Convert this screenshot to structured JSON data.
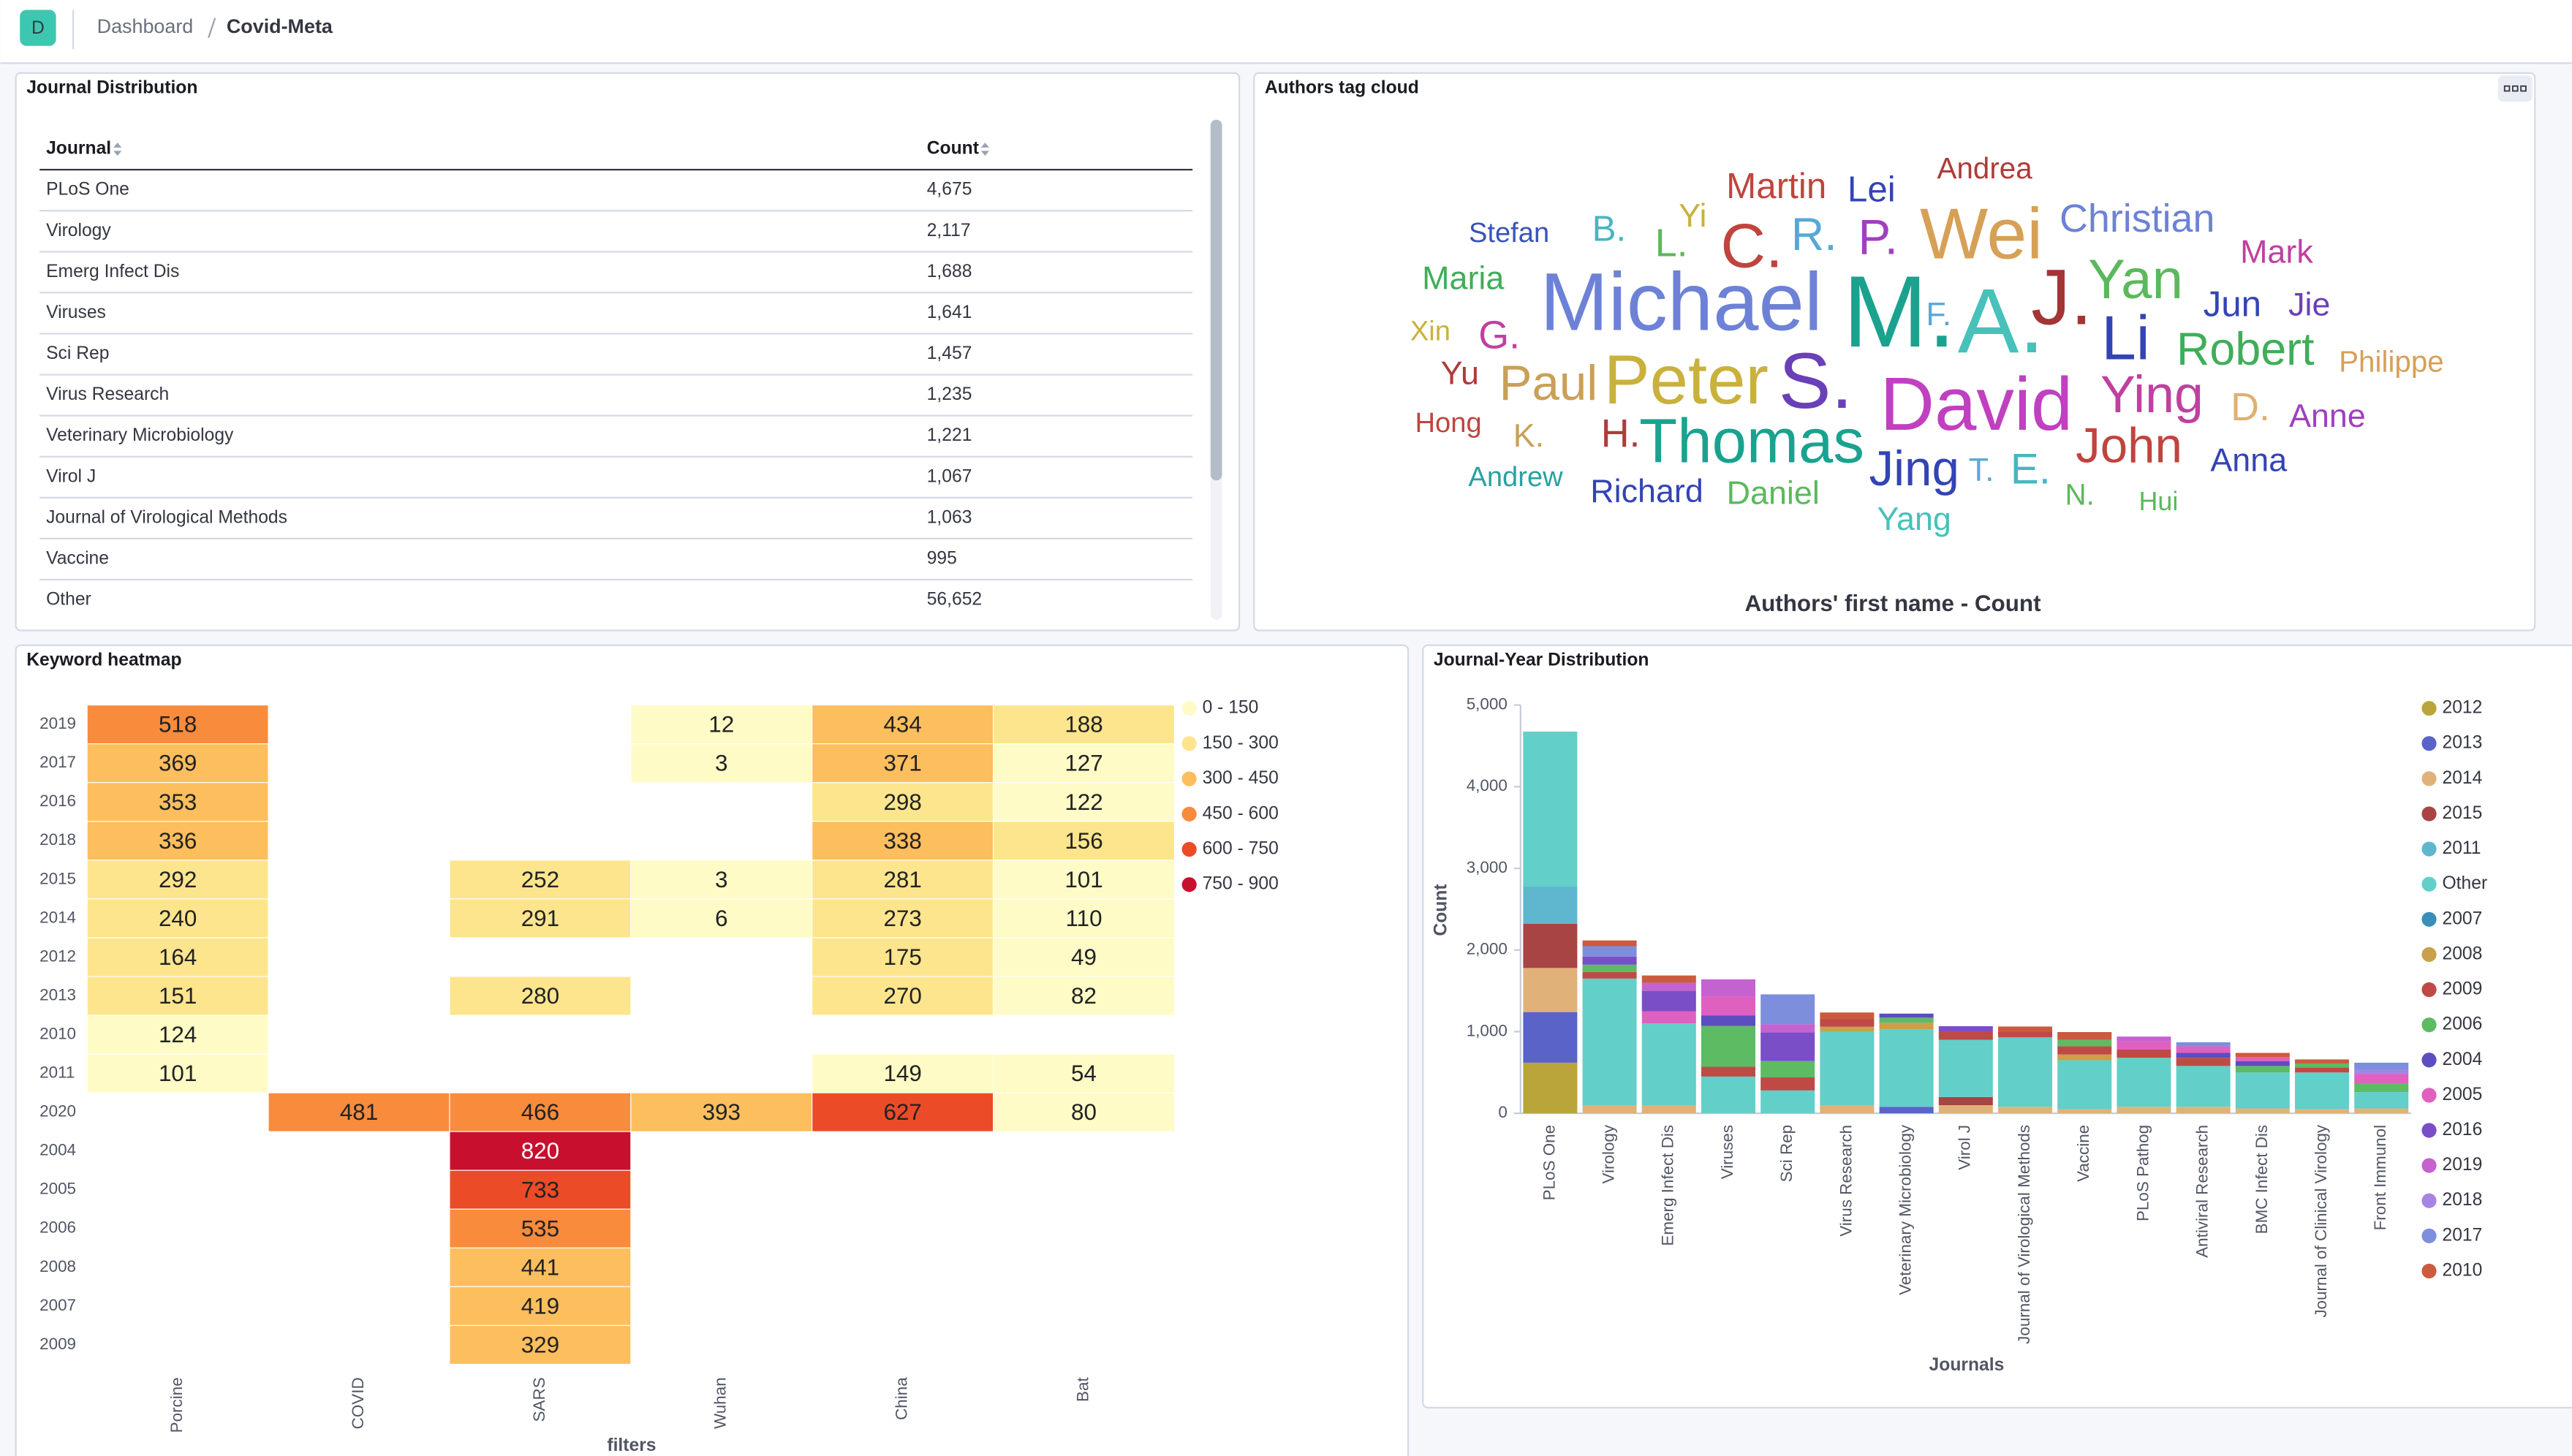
{
  "header": {
    "avatar": "D",
    "breadcrumbs": [
      "Dashboard",
      "Covid-Meta"
    ]
  },
  "journal_table": {
    "title": "Journal Distribution",
    "columns": [
      "Journal",
      "Count"
    ],
    "rows": [
      [
        "PLoS One",
        "4,675"
      ],
      [
        "Virology",
        "2,117"
      ],
      [
        "Emerg Infect Dis",
        "1,688"
      ],
      [
        "Viruses",
        "1,641"
      ],
      [
        "Sci Rep",
        "1,457"
      ],
      [
        "Virus Research",
        "1,235"
      ],
      [
        "Veterinary Microbiology",
        "1,221"
      ],
      [
        "Virol J",
        "1,067"
      ],
      [
        "Journal of Virological Methods",
        "1,063"
      ],
      [
        "Vaccine",
        "995"
      ],
      [
        "Other",
        "56,652"
      ]
    ]
  },
  "chart_data": [
    {
      "type": "tagcloud",
      "title": "Authors tag cloud",
      "caption": "Authors' first name - Count",
      "words": [
        {
          "text": "Andrea",
          "color": "#b03a3a"
        },
        {
          "text": "Martin",
          "color": "#c0443e"
        },
        {
          "text": "Lei",
          "color": "#3344b5"
        },
        {
          "text": "Yi",
          "color": "#c9b13c"
        },
        {
          "text": "Stefan",
          "color": "#3a54b8"
        },
        {
          "text": "B.",
          "color": "#47b6c0"
        },
        {
          "text": "L.",
          "color": "#5cb85c"
        },
        {
          "text": "C.",
          "color": "#c0443e"
        },
        {
          "text": "R.",
          "color": "#59a8d4"
        },
        {
          "text": "P.",
          "color": "#a040c0"
        },
        {
          "text": "Wei",
          "color": "#d7a057"
        },
        {
          "text": "Christian",
          "color": "#6d82d6"
        },
        {
          "text": "Mark",
          "color": "#c040a0"
        },
        {
          "text": "Maria",
          "color": "#3fae59"
        },
        {
          "text": "Yan",
          "color": "#5cb85c"
        },
        {
          "text": "Michael",
          "color": "#6d82d6"
        },
        {
          "text": "M.",
          "color": "#1aa28f"
        },
        {
          "text": "A.",
          "color": "#47c1b9"
        },
        {
          "text": "J.",
          "color": "#a33535"
        },
        {
          "text": "F.",
          "color": "#59a8d4"
        },
        {
          "text": "Jun",
          "color": "#3344b5"
        },
        {
          "text": "Jie",
          "color": "#6a40b8"
        },
        {
          "text": "Xin",
          "color": "#c9b13c"
        },
        {
          "text": "G.",
          "color": "#c040a0"
        },
        {
          "text": "Li",
          "color": "#3344b5"
        },
        {
          "text": "Robert",
          "color": "#3fae59"
        },
        {
          "text": "Philippe",
          "color": "#d7a057"
        },
        {
          "text": "Yu",
          "color": "#b03a3a"
        },
        {
          "text": "Paul",
          "color": "#c9a057"
        },
        {
          "text": "Peter",
          "color": "#c9b13c"
        },
        {
          "text": "S.",
          "color": "#6a40b8"
        },
        {
          "text": "David",
          "color": "#c040c0"
        },
        {
          "text": "Ying",
          "color": "#c040a0"
        },
        {
          "text": "D.",
          "color": "#e0b070"
        },
        {
          "text": "Anne",
          "color": "#a040c0"
        },
        {
          "text": "Hong",
          "color": "#c0443e"
        },
        {
          "text": "K.",
          "color": "#c9a057"
        },
        {
          "text": "H.",
          "color": "#b03a3a"
        },
        {
          "text": "Thomas",
          "color": "#1aa28f"
        },
        {
          "text": "Jing",
          "color": "#3344b5"
        },
        {
          "text": "T.",
          "color": "#59a8d4"
        },
        {
          "text": "E.",
          "color": "#47b6c0"
        },
        {
          "text": "John",
          "color": "#c0443e"
        },
        {
          "text": "Anna",
          "color": "#3344b5"
        },
        {
          "text": "Andrew",
          "color": "#2aa0a0"
        },
        {
          "text": "Richard",
          "color": "#3344b5"
        },
        {
          "text": "Daniel",
          "color": "#5cb85c"
        },
        {
          "text": "N.",
          "color": "#5cb85c"
        },
        {
          "text": "Hui",
          "color": "#5cb85c"
        },
        {
          "text": "Yang",
          "color": "#47c1b9"
        }
      ]
    },
    {
      "type": "heatmap",
      "title": "Keyword heatmap",
      "x_label": "filters",
      "categories": [
        "Porcine",
        "COVID",
        "SARS",
        "Wuhan",
        "China",
        "Bat"
      ],
      "rows": [
        "2019",
        "2017",
        "2016",
        "2018",
        "2015",
        "2014",
        "2012",
        "2013",
        "2010",
        "2011",
        "2020",
        "2004",
        "2005",
        "2006",
        "2008",
        "2007",
        "2009"
      ],
      "values": [
        [
          518,
          null,
          null,
          12,
          434,
          188
        ],
        [
          369,
          null,
          null,
          3,
          371,
          127
        ],
        [
          353,
          null,
          null,
          null,
          298,
          122
        ],
        [
          336,
          null,
          null,
          null,
          338,
          156
        ],
        [
          292,
          null,
          252,
          3,
          281,
          101
        ],
        [
          240,
          null,
          291,
          6,
          273,
          110
        ],
        [
          164,
          null,
          null,
          null,
          175,
          49
        ],
        [
          151,
          null,
          280,
          null,
          270,
          82
        ],
        [
          124,
          null,
          null,
          null,
          null,
          null
        ],
        [
          101,
          null,
          null,
          null,
          149,
          54
        ],
        [
          null,
          481,
          466,
          393,
          627,
          80
        ],
        [
          null,
          null,
          820,
          null,
          null,
          null
        ],
        [
          null,
          null,
          733,
          null,
          null,
          null
        ],
        [
          null,
          null,
          535,
          null,
          null,
          null
        ],
        [
          null,
          null,
          441,
          null,
          null,
          null
        ],
        [
          null,
          null,
          419,
          null,
          null,
          null
        ],
        [
          null,
          null,
          329,
          null,
          null,
          null
        ]
      ],
      "legend": [
        {
          "from": 0,
          "to": 150,
          "label": "0 - 150",
          "color": "#fefbc6"
        },
        {
          "from": 150,
          "to": 300,
          "label": "150 - 300",
          "color": "#fde58e"
        },
        {
          "from": 300,
          "to": 450,
          "label": "300 - 450",
          "color": "#fdbe5e"
        },
        {
          "from": 450,
          "to": 600,
          "label": "450 - 600",
          "color": "#f98b3c"
        },
        {
          "from": 600,
          "to": 750,
          "label": "600 - 750",
          "color": "#ec4b27"
        },
        {
          "from": 750,
          "to": 900,
          "label": "750 - 900",
          "color": "#c8102e"
        }
      ]
    },
    {
      "type": "bar",
      "stacked": true,
      "title": "Journal-Year Distribution",
      "x_label": "Journals",
      "y_label": "Count",
      "legend": "right",
      "ylim": [
        0,
        5000
      ],
      "yticks": [
        0,
        {
          "value": 1000,
          "label": "1,000"
        },
        {
          "value": 2000,
          "label": "2,000"
        },
        {
          "value": 3000,
          "label": "3,000"
        },
        {
          "value": 4000,
          "label": "4,000"
        },
        {
          "value": 5000,
          "label": "5,000"
        }
      ],
      "categories": [
        "PLoS One",
        "Virology",
        "Emerg Infect Dis",
        "Viruses",
        "Sci Rep",
        "Virus Research",
        "Veterinary Microbiology",
        "Virol J",
        "Journal of Virological Methods",
        "Vaccine",
        "PLoS Pathog",
        "Antiviral Research",
        "BMC Infect Dis",
        "Journal of Clinical Virology",
        "Front Immunol"
      ],
      "series": [
        {
          "name": "2012",
          "color": "#b9a53a",
          "values": [
            620,
            0,
            0,
            0,
            0,
            0,
            0,
            0,
            0,
            0,
            0,
            0,
            0,
            0,
            0
          ]
        },
        {
          "name": "2013",
          "color": "#5a63c8",
          "values": [
            620,
            0,
            0,
            0,
            0,
            0,
            80,
            0,
            0,
            0,
            0,
            0,
            0,
            0,
            0
          ]
        },
        {
          "name": "2014",
          "color": "#e0b27a",
          "values": [
            540,
            100,
            100,
            0,
            0,
            100,
            0,
            100,
            80,
            50,
            80,
            80,
            60,
            50,
            60
          ]
        },
        {
          "name": "2015",
          "color": "#a84444",
          "values": [
            540,
            0,
            0,
            0,
            0,
            0,
            0,
            100,
            0,
            0,
            0,
            0,
            0,
            0,
            0
          ]
        },
        {
          "name": "2011",
          "color": "#5fb7cf",
          "values": [
            460,
            0,
            0,
            0,
            0,
            0,
            0,
            0,
            0,
            0,
            0,
            0,
            0,
            0,
            0
          ]
        },
        {
          "name": "Other",
          "color": "#62cfc8",
          "values": [
            1895,
            1550,
            1000,
            450,
            280,
            900,
            950,
            700,
            850,
            600,
            600,
            500,
            440,
            450,
            200
          ]
        },
        {
          "name": "2007",
          "color": "#3a8fb8",
          "values": [
            0,
            0,
            0,
            0,
            0,
            0,
            0,
            0,
            0,
            0,
            0,
            0,
            0,
            0,
            0
          ]
        },
        {
          "name": "2008",
          "color": "#c9a04c",
          "values": [
            0,
            0,
            0,
            0,
            0,
            60,
            81,
            0,
            0,
            70,
            0,
            0,
            0,
            0,
            0
          ]
        },
        {
          "name": "2009",
          "color": "#bf4a45",
          "values": [
            0,
            80,
            0,
            120,
            160,
            100,
            0,
            100,
            70,
            100,
            100,
            100,
            0,
            60,
            0
          ]
        },
        {
          "name": "2006",
          "color": "#5dbb63",
          "values": [
            0,
            90,
            0,
            500,
            200,
            0,
            60,
            0,
            0,
            80,
            0,
            0,
            80,
            50,
            100
          ]
        },
        {
          "name": "2004",
          "color": "#5a4ec0",
          "values": [
            0,
            0,
            0,
            130,
            0,
            0,
            50,
            0,
            0,
            0,
            0,
            60,
            60,
            0,
            0
          ]
        },
        {
          "name": "2005",
          "color": "#e060c0",
          "values": [
            0,
            0,
            150,
            230,
            0,
            0,
            0,
            0,
            0,
            0,
            100,
            80,
            50,
            0,
            120
          ]
        },
        {
          "name": "2016",
          "color": "#7a4ec6",
          "values": [
            0,
            100,
            250,
            0,
            350,
            0,
            0,
            67,
            0,
            0,
            0,
            0,
            0,
            0,
            0
          ]
        },
        {
          "name": "2019",
          "color": "#c462d0",
          "values": [
            0,
            0,
            100,
            211,
            100,
            0,
            0,
            0,
            0,
            0,
            60,
            0,
            0,
            0,
            0
          ]
        },
        {
          "name": "2018",
          "color": "#a884e2",
          "values": [
            0,
            0,
            0,
            0,
            0,
            0,
            0,
            0,
            0,
            0,
            0,
            0,
            0,
            0,
            50
          ]
        },
        {
          "name": "2017",
          "color": "#7d8fdc",
          "values": [
            0,
            127,
            0,
            0,
            367,
            0,
            0,
            0,
            0,
            0,
            0,
            50,
            0,
            0,
            90
          ]
        },
        {
          "name": "2010",
          "color": "#cc5a3f",
          "values": [
            0,
            70,
            88,
            0,
            0,
            75,
            0,
            0,
            63,
            95,
            0,
            0,
            50,
            50,
            0
          ]
        }
      ]
    }
  ]
}
